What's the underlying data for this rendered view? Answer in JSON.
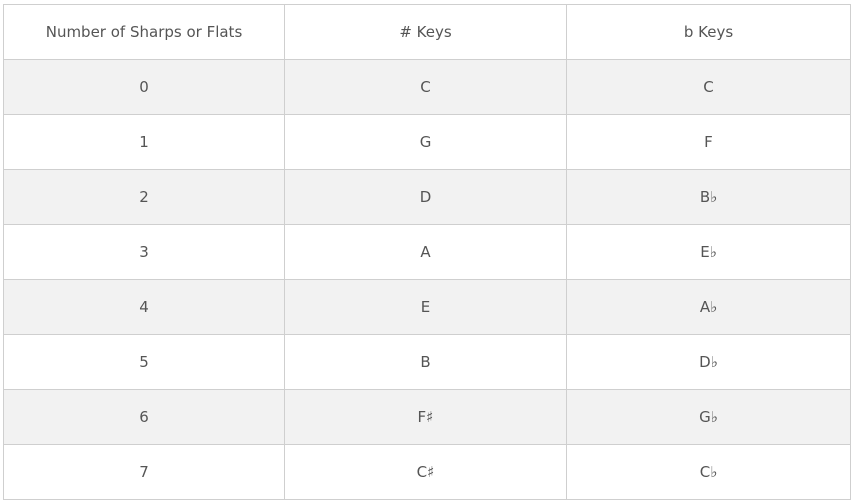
{
  "table": {
    "header": [
      "Number of Sharps or Flats",
      "# Keys",
      "b Keys"
    ],
    "rows": [
      [
        0,
        "C",
        "C"
      ],
      [
        1,
        "G",
        "F"
      ],
      [
        2,
        "D",
        "B♭"
      ],
      [
        3,
        "A",
        "E♭"
      ],
      [
        4,
        "E",
        "A♭"
      ],
      [
        5,
        "B",
        "D♭"
      ],
      [
        6,
        "F♯",
        "G♭"
      ],
      [
        7,
        "C♯",
        "C♭"
      ]
    ]
  }
}
